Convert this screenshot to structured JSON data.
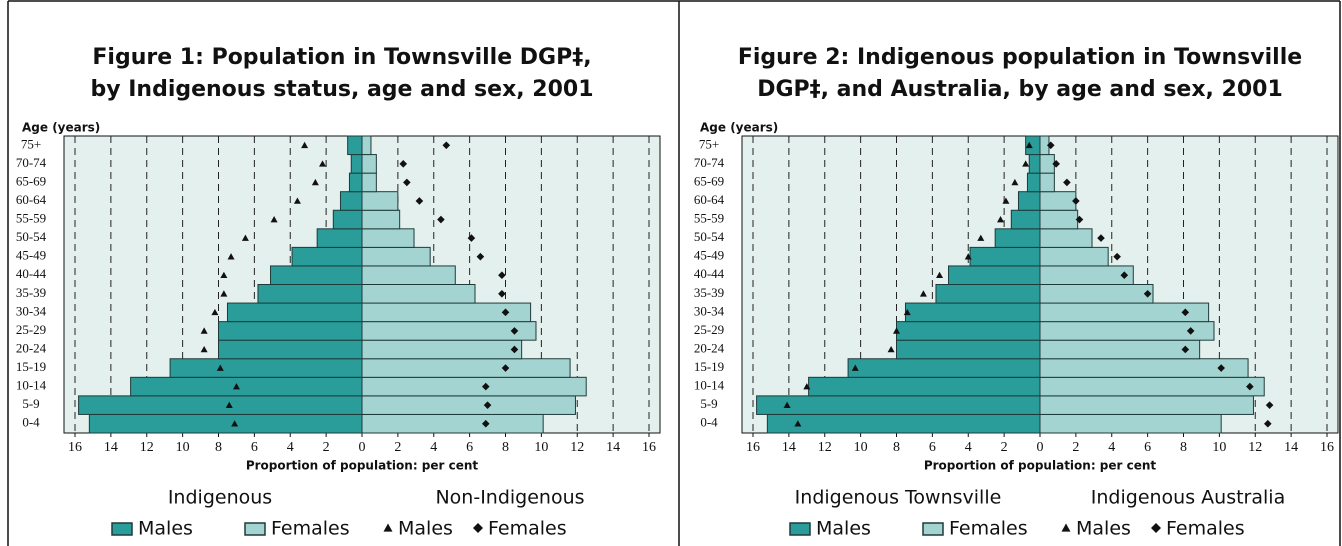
{
  "chart_data": [
    {
      "type": "pyramid",
      "title": [
        "Figure 1: Population in Townsville DGP‡,",
        "by Indigenous status, age and sex, 2001"
      ],
      "y_label": "Age (years)",
      "x_label": "Proportion of population: per cent",
      "categories": [
        "0-4",
        "5-9",
        "10-14",
        "15-19",
        "20-24",
        "25-29",
        "30-34",
        "35-39",
        "40-44",
        "45-49",
        "50-54",
        "55-59",
        "60-64",
        "65-69",
        "70-74",
        "75+"
      ],
      "xlim": [
        -16,
        16
      ],
      "xticks": [
        {
          "value": -16,
          "label": "16"
        },
        {
          "value": -14,
          "label": "14"
        },
        {
          "value": -12,
          "label": "12"
        },
        {
          "value": -10,
          "label": "10"
        },
        {
          "value": -8,
          "label": "8"
        },
        {
          "value": -6,
          "label": "6"
        },
        {
          "value": -4,
          "label": "4"
        },
        {
          "value": -2,
          "label": "2"
        },
        0,
        2,
        4,
        6,
        8,
        10,
        12,
        14,
        16
      ],
      "grid": true,
      "legend_groups": [
        "Indigenous",
        "Non-Indigenous"
      ],
      "series": [
        {
          "name": "Males",
          "marker": "bar",
          "side": "left",
          "color": "#2a9c99",
          "values": [
            15.2,
            15.8,
            12.9,
            10.7,
            8.0,
            8.0,
            7.5,
            5.8,
            5.1,
            3.9,
            2.5,
            1.6,
            1.2,
            0.7,
            0.6,
            0.8
          ]
        },
        {
          "name": "Females",
          "marker": "bar",
          "side": "right",
          "color": "#a4d4d1",
          "values": [
            10.1,
            11.9,
            12.5,
            11.6,
            8.9,
            9.7,
            9.4,
            6.3,
            5.2,
            3.8,
            2.9,
            2.1,
            2.0,
            0.8,
            0.8,
            0.5
          ]
        },
        {
          "name": "Males",
          "marker": "triangle",
          "side": "left",
          "color": "#111111",
          "values": [
            7.1,
            7.4,
            7.0,
            7.9,
            8.8,
            8.8,
            8.2,
            7.7,
            7.7,
            7.3,
            6.5,
            4.9,
            3.6,
            2.6,
            2.2,
            3.2
          ]
        },
        {
          "name": "Females",
          "marker": "diamond",
          "side": "right",
          "color": "#111111",
          "values": [
            6.9,
            7.0,
            6.9,
            8.0,
            8.5,
            8.5,
            8.0,
            7.8,
            7.8,
            6.6,
            6.1,
            4.4,
            3.2,
            2.5,
            2.3,
            4.7
          ]
        }
      ]
    },
    {
      "type": "pyramid",
      "title": [
        "Figure 2: Indigenous population in Townsville",
        "DGP‡, and Australia, by age and sex, 2001"
      ],
      "y_label": "Age (years)",
      "x_label": "Proportion of population: per cent",
      "categories": [
        "0-4",
        "5-9",
        "10-14",
        "15-19",
        "20-24",
        "25-29",
        "30-34",
        "35-39",
        "40-44",
        "45-49",
        "50-54",
        "55-59",
        "60-64",
        "65-69",
        "70-74",
        "75+"
      ],
      "xlim": [
        -16,
        16
      ],
      "xticks": [
        {
          "value": -16,
          "label": "16"
        },
        {
          "value": -14,
          "label": "14"
        },
        {
          "value": -12,
          "label": "12"
        },
        {
          "value": -10,
          "label": "10"
        },
        {
          "value": -8,
          "label": "8"
        },
        {
          "value": -6,
          "label": "6"
        },
        {
          "value": -4,
          "label": "4"
        },
        {
          "value": -2,
          "label": "2"
        },
        0,
        2,
        4,
        6,
        8,
        10,
        12,
        14,
        16
      ],
      "grid": true,
      "legend_groups": [
        "Indigenous Townsville",
        "Indigenous Australia"
      ],
      "series": [
        {
          "name": "Males",
          "marker": "bar",
          "side": "left",
          "color": "#2a9c99",
          "values": [
            15.2,
            15.8,
            12.9,
            10.7,
            8.0,
            8.0,
            7.5,
            5.8,
            5.1,
            3.9,
            2.5,
            1.6,
            1.2,
            0.7,
            0.6,
            0.8
          ]
        },
        {
          "name": "Females",
          "marker": "bar",
          "side": "right",
          "color": "#a4d4d1",
          "values": [
            10.1,
            11.9,
            12.5,
            11.6,
            8.9,
            9.7,
            9.4,
            6.3,
            5.2,
            3.8,
            2.9,
            2.1,
            2.0,
            0.8,
            0.8,
            0.5
          ]
        },
        {
          "name": "Males",
          "marker": "triangle",
          "side": "left",
          "color": "#111111",
          "values": [
            13.5,
            14.1,
            13.0,
            10.3,
            8.3,
            8.0,
            7.4,
            6.5,
            5.6,
            4.0,
            3.3,
            2.2,
            1.9,
            1.4,
            0.8,
            0.6
          ]
        },
        {
          "name": "Females",
          "marker": "diamond",
          "side": "right",
          "color": "#111111",
          "values": [
            12.7,
            12.8,
            11.7,
            10.1,
            8.1,
            8.4,
            8.1,
            6.0,
            4.7,
            4.3,
            3.4,
            2.2,
            2.0,
            1.5,
            0.9,
            0.6
          ]
        }
      ]
    }
  ]
}
